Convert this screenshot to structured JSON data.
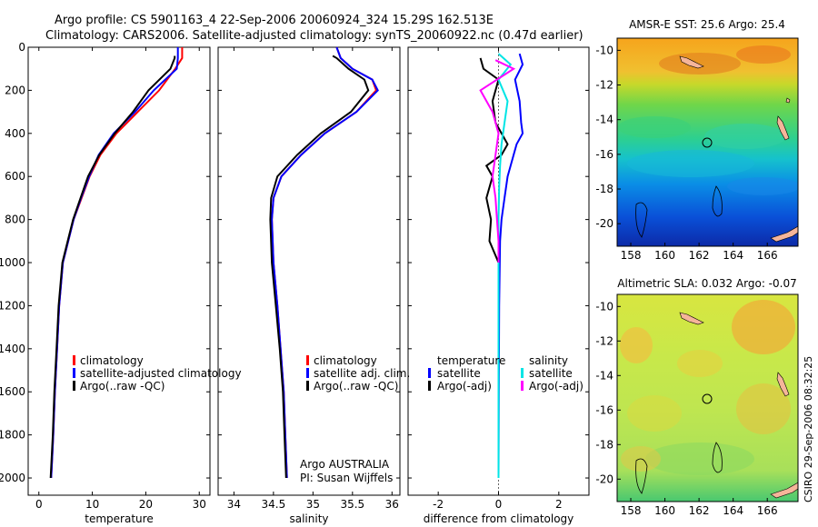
{
  "colors": {
    "climatology": "#ff0000",
    "satellite": "#0000ff",
    "argo": "#000000",
    "salinity_satellite": "#00e5e5",
    "salinity_argo": "#ff00ff",
    "land": "#f5b59a"
  },
  "header": {
    "title_line1": "Argo profile: CS 5901163_4 22-Sep-2006 20060924_324 15.29S 162.513E",
    "title_line2": "Climatology: CARS2006. Satellite-adjusted climatology: synTS_20060922.nc (0.47d earlier)"
  },
  "footer": {
    "watermark": "CSIRO 29-Sep-2006 08:32:25"
  },
  "chart_data": [
    {
      "type": "line",
      "id": "temperature_profile",
      "xlabel": "temperature",
      "ylabel": "",
      "xlim": [
        -2,
        32
      ],
      "ylim": [
        2080,
        0
      ],
      "y_reversed": true,
      "xticks": [
        0,
        10,
        20,
        30
      ],
      "yticks": [
        0,
        200,
        400,
        600,
        800,
        1000,
        1200,
        1400,
        1600,
        1800,
        2000
      ],
      "legend": [
        "climatology",
        "satellite-adjusted climatology",
        "Argo(..raw -QC)"
      ],
      "legend_position": "lower-center",
      "series": [
        {
          "name": "climatology",
          "color": "#ff0000",
          "x": [
            26.8,
            26.8,
            25.5,
            22.5,
            18.5,
            14.5,
            11.5,
            9.5,
            8.0,
            6.5,
            5.5,
            4.5,
            3.8,
            3.4,
            3.0,
            2.7,
            2.5,
            2.3
          ],
          "y": [
            0,
            50,
            100,
            200,
            300,
            400,
            500,
            600,
            700,
            800,
            900,
            1000,
            1200,
            1400,
            1600,
            1800,
            1900,
            2000
          ]
        },
        {
          "name": "satellite-adjusted climatology",
          "color": "#0000ff",
          "x": [
            26.0,
            26.0,
            25.8,
            21.5,
            18.0,
            14.0,
            11.2,
            9.4,
            7.9,
            6.5,
            5.5,
            4.5,
            3.8,
            3.4,
            3.0,
            2.7,
            2.5,
            2.3
          ],
          "y": [
            0,
            50,
            100,
            200,
            300,
            400,
            500,
            600,
            700,
            800,
            900,
            1000,
            1200,
            1400,
            1600,
            1800,
            1900,
            2000
          ]
        },
        {
          "name": "Argo(..raw -QC)",
          "color": "#000000",
          "x": [
            25.4,
            25.4,
            24.6,
            20.5,
            17.6,
            14.2,
            11.3,
            9.2,
            7.8,
            6.4,
            5.4,
            4.4,
            3.7,
            3.3,
            2.9,
            2.6,
            2.4,
            2.2
          ],
          "y": [
            40,
            50,
            100,
            200,
            300,
            400,
            500,
            600,
            700,
            800,
            900,
            1000,
            1200,
            1400,
            1600,
            1800,
            1900,
            2000
          ]
        }
      ]
    },
    {
      "type": "line",
      "id": "salinity_profile",
      "xlabel": "salinity",
      "ylabel": "",
      "xlim": [
        33.8,
        36.1
      ],
      "ylim": [
        2080,
        0
      ],
      "y_reversed": true,
      "xticks": [
        34,
        34.5,
        35,
        35.5,
        36
      ],
      "annotations": [
        "Argo AUSTRALIA",
        "PI: Susan Wijffels"
      ],
      "legend": [
        "climatology",
        "satellite adj. clim.",
        "Argo(..raw -QC)"
      ],
      "legend_position": "lower-right",
      "series": [
        {
          "name": "climatology",
          "color": "#ff0000",
          "x": [
            35.3,
            35.35,
            35.5,
            35.75,
            35.8,
            35.55,
            35.15,
            34.85,
            34.6,
            34.5,
            34.48,
            34.5,
            34.55,
            34.59,
            34.63,
            34.65,
            34.67
          ],
          "y": [
            0,
            50,
            100,
            150,
            200,
            300,
            400,
            500,
            600,
            700,
            800,
            1000,
            1200,
            1400,
            1600,
            1800,
            2000
          ]
        },
        {
          "name": "satellite adj. clim.",
          "color": "#0000ff",
          "x": [
            35.3,
            35.35,
            35.5,
            35.75,
            35.82,
            35.55,
            35.15,
            34.85,
            34.6,
            34.5,
            34.48,
            34.5,
            34.55,
            34.59,
            34.63,
            34.65,
            34.67
          ],
          "y": [
            0,
            50,
            100,
            150,
            200,
            300,
            400,
            500,
            600,
            700,
            800,
            1000,
            1200,
            1400,
            1600,
            1800,
            2000
          ]
        },
        {
          "name": "Argo(..raw -QC)",
          "color": "#000000",
          "x": [
            35.25,
            35.3,
            35.45,
            35.65,
            35.7,
            35.48,
            35.1,
            34.8,
            34.55,
            34.47,
            34.46,
            34.48,
            34.53,
            34.58,
            34.62,
            34.64,
            34.66
          ],
          "y": [
            40,
            50,
            100,
            150,
            200,
            300,
            400,
            500,
            600,
            700,
            800,
            1000,
            1200,
            1400,
            1600,
            1800,
            2000
          ]
        }
      ]
    },
    {
      "type": "line",
      "id": "difference_profile",
      "xlabel": "difference from climatology",
      "ylabel": "",
      "xlim": [
        -3,
        3
      ],
      "ylim": [
        2080,
        0
      ],
      "y_reversed": true,
      "xticks": [
        -2,
        0,
        2
      ],
      "legend_groups": [
        {
          "header": "temperature",
          "items": [
            "satellite",
            "Argo(-adj)"
          ]
        },
        {
          "header": "salinity",
          "items": [
            "satellite",
            "Argo(-adj)"
          ]
        }
      ],
      "series": [
        {
          "name": "temperature satellite",
          "color": "#0000ff",
          "x": [
            0.7,
            0.8,
            0.55,
            0.7,
            0.75,
            0.8,
            0.6,
            0.5,
            0.4,
            0.3,
            0.2,
            0.1,
            0.05,
            0.02,
            0.01,
            0.0
          ],
          "y": [
            30,
            80,
            150,
            250,
            350,
            400,
            450,
            500,
            550,
            600,
            700,
            800,
            900,
            1200,
            1600,
            2000
          ]
        },
        {
          "name": "temperature Argo(-adj)",
          "color": "#000000",
          "x": [
            -0.6,
            -0.5,
            0.0,
            -0.2,
            -0.1,
            0.1,
            0.3,
            0.1,
            -0.4,
            -0.2,
            -0.4,
            -0.25,
            -0.3,
            0.0,
            0.0,
            0.0
          ],
          "y": [
            50,
            100,
            150,
            250,
            350,
            400,
            450,
            500,
            550,
            600,
            700,
            800,
            900,
            1000,
            1200,
            1250
          ]
        },
        {
          "name": "salinity satellite",
          "color": "#00e5e5",
          "x": [
            0.0,
            0.4,
            0.0,
            0.3,
            0.2,
            0.1,
            0.05,
            0.02,
            0.0,
            0.0,
            0.0,
            0.0
          ],
          "y": [
            30,
            80,
            150,
            250,
            350,
            450,
            550,
            650,
            800,
            1200,
            1600,
            2000
          ]
        },
        {
          "name": "salinity Argo(-adj)",
          "color": "#ff00ff",
          "x": [
            -0.1,
            0.5,
            -0.6,
            -0.2,
            0.0,
            -0.1,
            -0.2,
            -0.1,
            -0.05,
            0.0,
            0.0
          ],
          "y": [
            60,
            100,
            200,
            300,
            400,
            500,
            600,
            700,
            800,
            900,
            1000
          ]
        }
      ]
    },
    {
      "type": "heatmap",
      "id": "sst_map",
      "title": "AMSR-E SST: 25.6 Argo: 25.4",
      "xlim": [
        157.2,
        167.8
      ],
      "ylim": [
        -21.3,
        -9.3
      ],
      "xticks": [
        158,
        160,
        162,
        164,
        166
      ],
      "yticks": [
        -10,
        -12,
        -14,
        -16,
        -18,
        -20
      ],
      "marker": {
        "lon": 162.5,
        "lat": -15.3
      }
    },
    {
      "type": "heatmap",
      "id": "sla_map",
      "title": "Altimetric SLA: 0.032 Argo: -0.07",
      "xlim": [
        157.2,
        167.8
      ],
      "ylim": [
        -21.3,
        -9.3
      ],
      "xticks": [
        158,
        160,
        162,
        164,
        166
      ],
      "yticks": [
        -10,
        -12,
        -14,
        -16,
        -18,
        -20
      ],
      "marker": {
        "lon": 162.5,
        "lat": -15.3
      }
    }
  ]
}
